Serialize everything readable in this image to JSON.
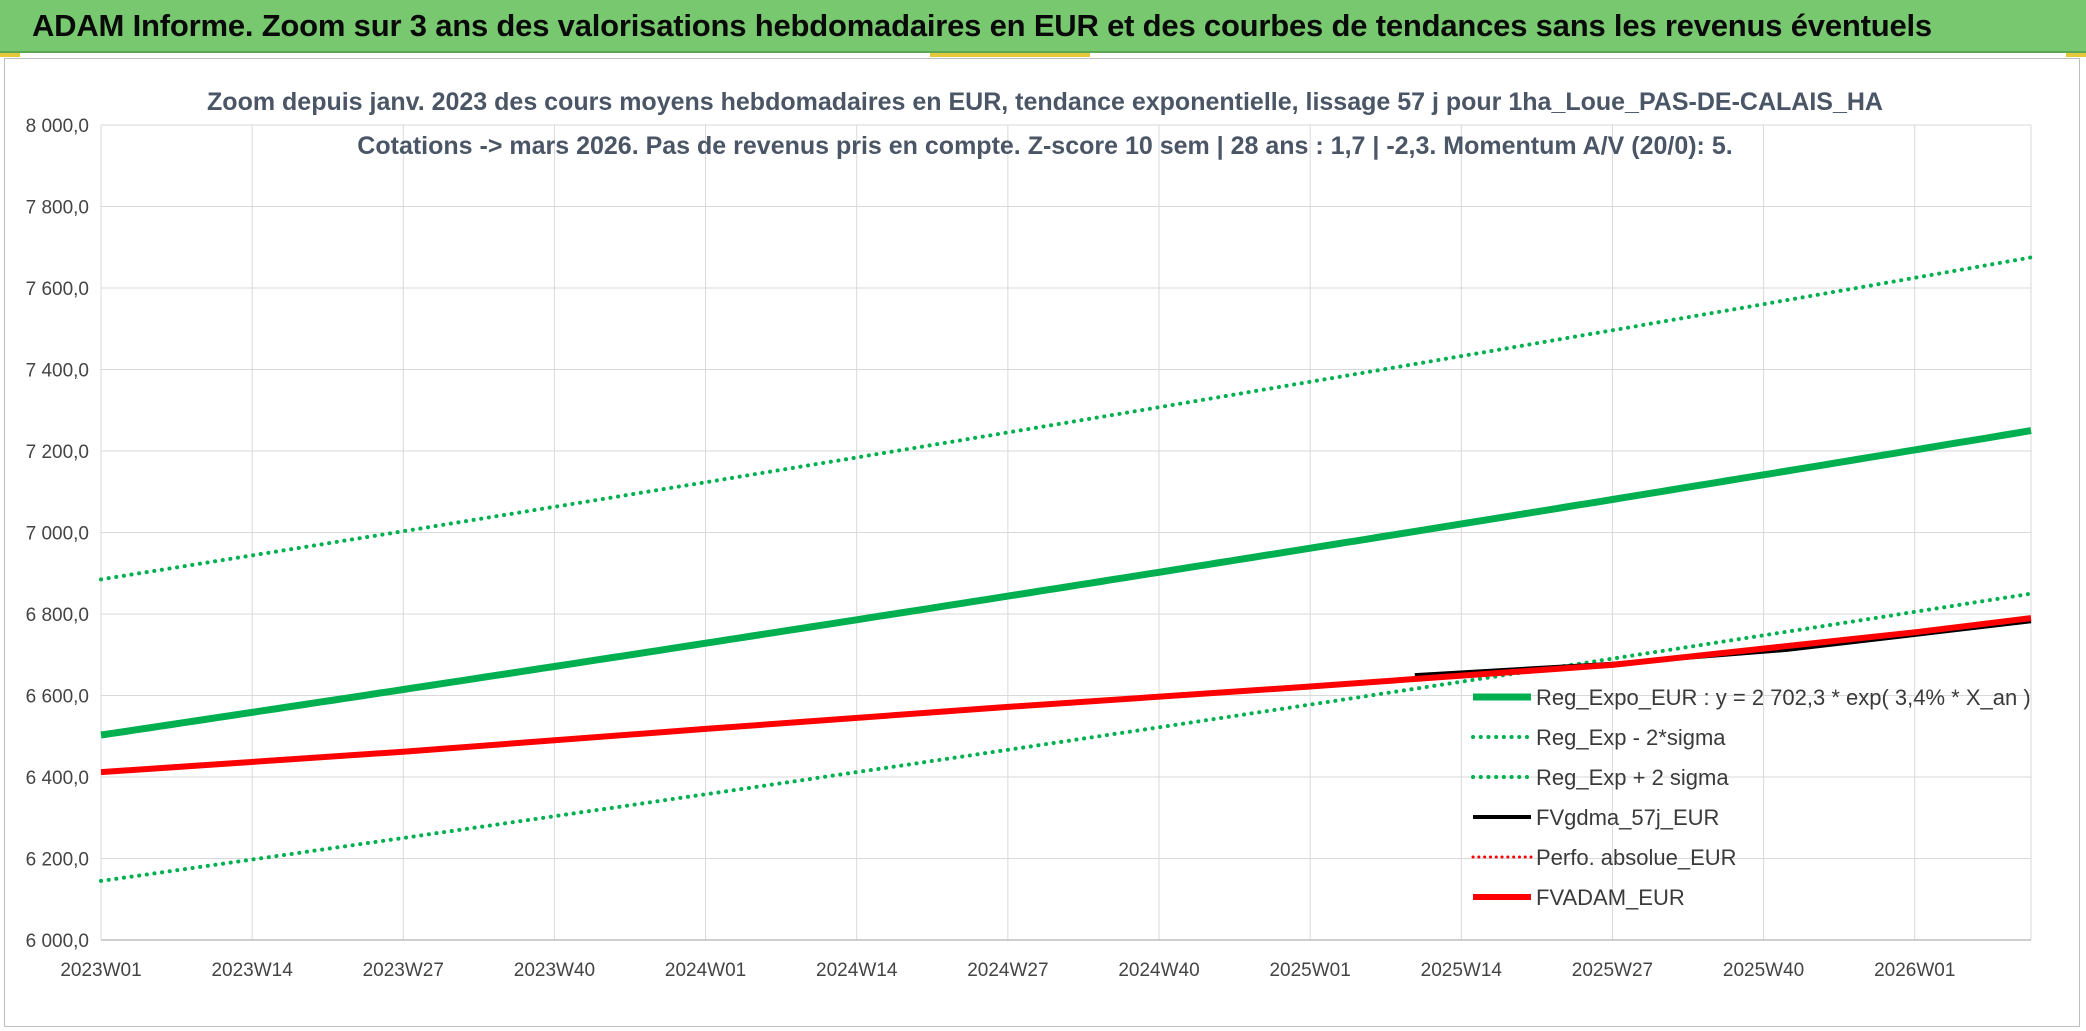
{
  "banner": {
    "title": "ADAM Informe. Zoom sur 3 ans des valorisations hebdomadaires en EUR et des courbes de tendances sans les revenus éventuels"
  },
  "colors": {
    "banner_bg": "#77c86f",
    "green": "#00b050",
    "red": "#ff0000",
    "black": "#000000",
    "grid": "#d9d9d9"
  },
  "chart_data": {
    "type": "line",
    "title_line1": "Zoom depuis janv. 2023 des cours moyens hebdomadaires en EUR, tendance exponentielle, lissage 57 j pour 1ha_Loue_PAS-DE-CALAIS_HA",
    "title_line2": "Cotations -> mars 2026. Pas de revenus pris en compte. Z-score 10 sem | 28 ans : 1,7 | -2,3. Momentum A/V (20/0): 5.",
    "ylim": [
      6000,
      8000
    ],
    "y_ticks": [
      "6 000,0",
      "6 200,0",
      "6 400,0",
      "6 600,0",
      "6 800,0",
      "7 000,0",
      "7 200,0",
      "7 400,0",
      "7 600,0",
      "7 800,0",
      "8 000,0"
    ],
    "y_tick_values": [
      6000,
      6200,
      6400,
      6600,
      6800,
      7000,
      7200,
      7400,
      7600,
      7800,
      8000
    ],
    "x_ticks": [
      "2023W01",
      "2023W14",
      "2023W27",
      "2023W40",
      "2024W01",
      "2024W14",
      "2024W27",
      "2024W40",
      "2025W01",
      "2025W14",
      "2025W27",
      "2025W40",
      "2026W01"
    ],
    "x_range_weeks": [
      0,
      166
    ],
    "x_tick_weeks": [
      0,
      13,
      26,
      39,
      52,
      65,
      78,
      91,
      104,
      117,
      130,
      143,
      156
    ],
    "grid": true,
    "legend_position": "right-bottom",
    "series": [
      {
        "name": "Reg_Expo_EUR : y = 2 702,3 * exp( 3,4% *  X_an )",
        "color": "#00b050",
        "style": "solid",
        "width": 7,
        "x": [
          0,
          166
        ],
        "y": [
          6503,
          7250
        ],
        "curvature": "exponential"
      },
      {
        "name": "Reg_Exp - 2*sigma",
        "color": "#00b050",
        "style": "dotted",
        "width": 4,
        "x": [
          0,
          166
        ],
        "y": [
          6145,
          6850
        ],
        "curvature": "exponential"
      },
      {
        "name": "Reg_Exp + 2 sigma",
        "color": "#00b050",
        "style": "dotted",
        "width": 4,
        "x": [
          0,
          166
        ],
        "y": [
          6885,
          7675
        ],
        "curvature": "exponential"
      },
      {
        "name": "FVgdma_57j_EUR",
        "color": "#000000",
        "style": "solid",
        "width": 4,
        "x": [
          113,
          130,
          145,
          166
        ],
        "y": [
          6650,
          6678,
          6712,
          6782
        ]
      },
      {
        "name": "Perfo. absolue_EUR",
        "color": "#ff0000",
        "style": "dotted",
        "width": 3,
        "x": [],
        "y": []
      },
      {
        "name": "FVADAM_EUR",
        "color": "#ff0000",
        "style": "solid",
        "width": 6,
        "x": [
          0,
          26,
          52,
          78,
          104,
          130,
          156,
          166
        ],
        "y": [
          6412,
          6462,
          6518,
          6572,
          6622,
          6675,
          6755,
          6790
        ]
      }
    ]
  }
}
